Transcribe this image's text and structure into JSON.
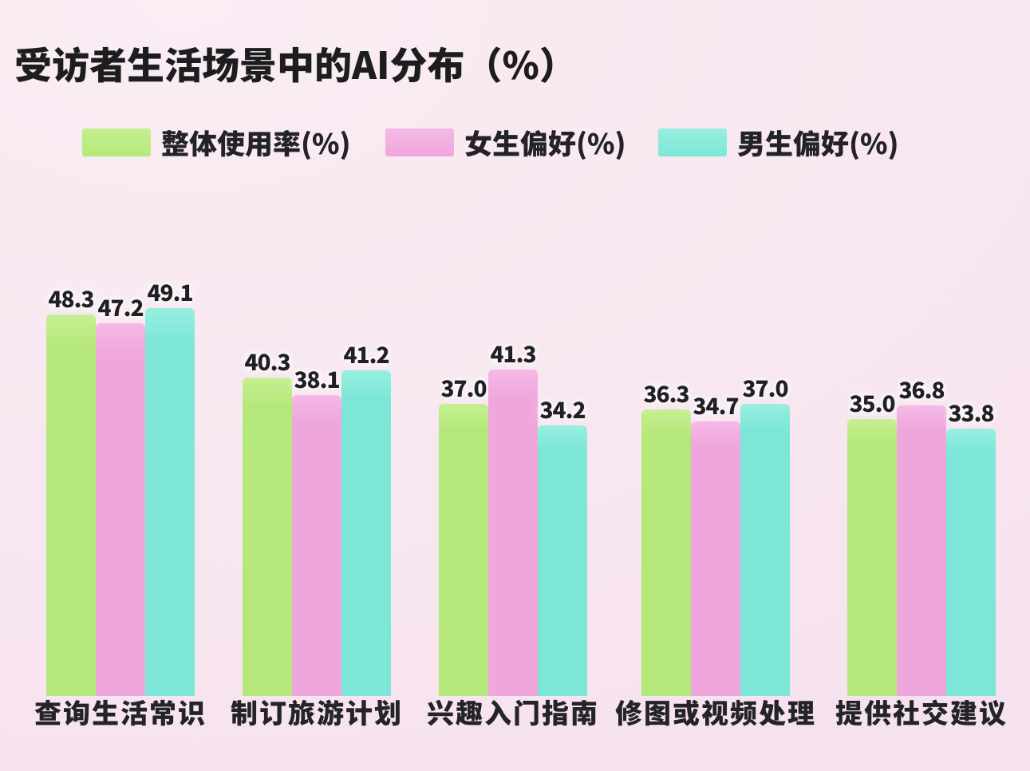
{
  "page": {
    "background_color": "#f8e7f0",
    "text_color": "#1d1d20"
  },
  "chart_data": {
    "type": "bar",
    "title": "受访者生活场景中的AI分布（%）",
    "xlabel": "",
    "ylabel": "",
    "ylim": [
      0,
      52
    ],
    "grid": false,
    "legend_position": "top",
    "data_labels": "above bars, one decimal",
    "categories": [
      "查询生活常识",
      "制订旅游计划",
      "兴趣入门指南",
      "修图或视频处理",
      "提供社交建议"
    ],
    "series": [
      {
        "name": "整体使用率(%)",
        "color": "#b5e87a",
        "color_light": "#c6ef92",
        "values": [
          48.3,
          40.3,
          37.0,
          36.3,
          35.0
        ]
      },
      {
        "name": "女生偏好(%)",
        "color": "#efa6dc",
        "color_light": "#f4b9e6",
        "values": [
          47.2,
          38.1,
          41.3,
          34.7,
          36.8
        ]
      },
      {
        "name": "男生偏好(%)",
        "color": "#7ce7d7",
        "color_light": "#97efe0",
        "values": [
          49.1,
          41.2,
          34.2,
          37.0,
          33.8
        ]
      }
    ]
  }
}
